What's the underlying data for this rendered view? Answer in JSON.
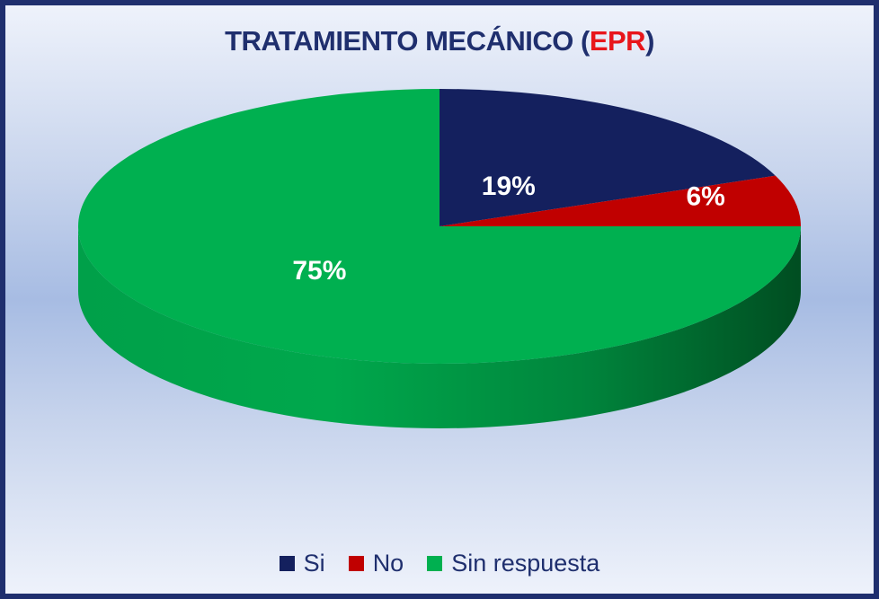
{
  "chart_data": {
    "type": "pie",
    "title": "TRATAMIENTO MECÁNICO (EPR)",
    "title_parts": {
      "before": "TRATAMIENTO MECÁNICO (",
      "accent": "EPR",
      "after": ")"
    },
    "categories": [
      "Si",
      "No",
      "Sin respuesta"
    ],
    "values": [
      19,
      6,
      75
    ],
    "labels": [
      "19%",
      "6%",
      "75%"
    ],
    "colors": [
      "#14205e",
      "#c00000",
      "#00b050"
    ],
    "legend_position": "bottom",
    "style": "3d"
  }
}
